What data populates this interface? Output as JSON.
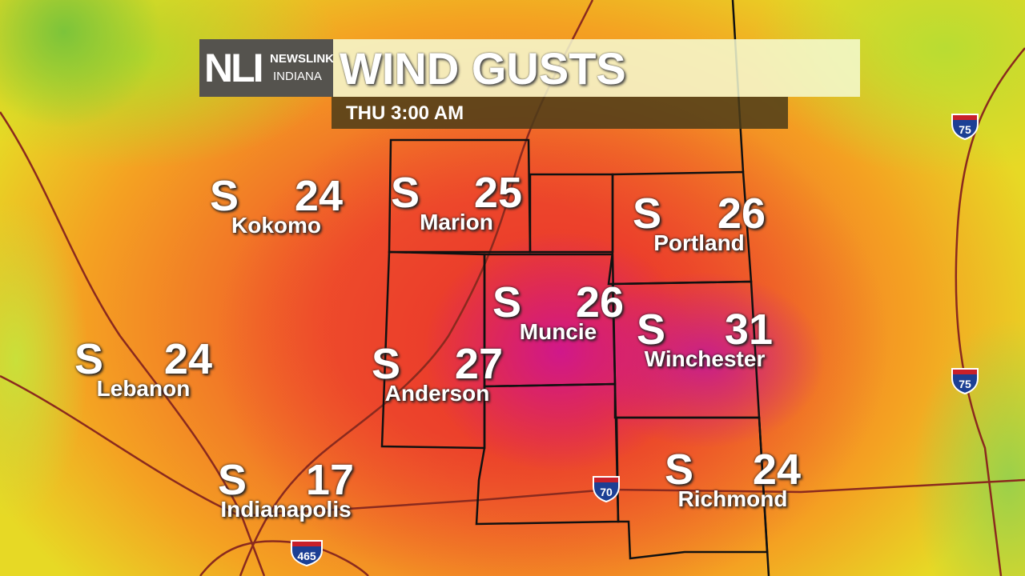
{
  "logo": {
    "mark": "NLI",
    "line1": "NEWSLINK",
    "line2": "INDIANA"
  },
  "header": {
    "title": "WIND GUSTS",
    "time": "THU  3:00 AM"
  },
  "cities": [
    {
      "name": "Kokomo",
      "direction": "S",
      "gust": "24"
    },
    {
      "name": "Marion",
      "direction": "S",
      "gust": "25"
    },
    {
      "name": "Portland",
      "direction": "S",
      "gust": "26"
    },
    {
      "name": "Muncie",
      "direction": "S",
      "gust": "26"
    },
    {
      "name": "Winchester",
      "direction": "S",
      "gust": "31"
    },
    {
      "name": "Lebanon",
      "direction": "S",
      "gust": "24"
    },
    {
      "name": "Anderson",
      "direction": "S",
      "gust": "27"
    },
    {
      "name": "Indianapolis",
      "direction": "S",
      "gust": "17"
    },
    {
      "name": "Richmond",
      "direction": "S",
      "gust": "24"
    }
  ],
  "interstates": [
    "75",
    "75",
    "70",
    "465"
  ],
  "colors": {
    "low": "#9bd04a",
    "mid": "#f4a222",
    "high": "#e8302c",
    "peak": "#d0188a"
  }
}
